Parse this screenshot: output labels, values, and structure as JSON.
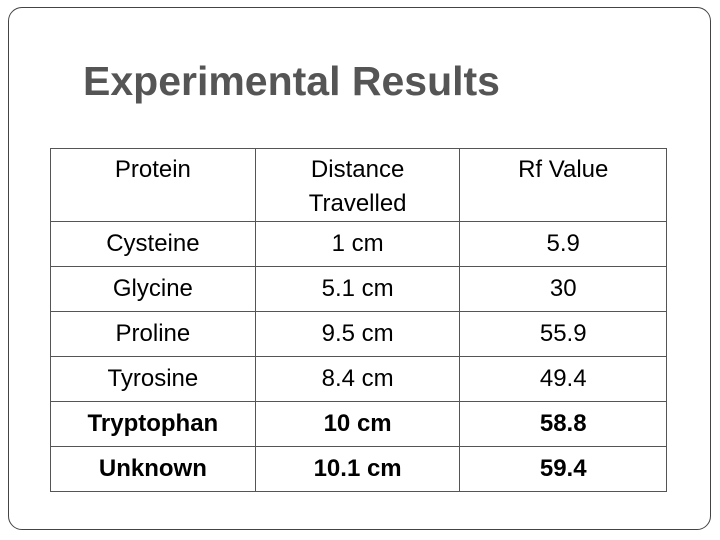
{
  "title": "Experimental Results",
  "table": {
    "header": [
      "Protein",
      "Distance Travelled",
      "Rf Value"
    ],
    "rows": [
      {
        "cells": [
          "Cysteine",
          "1 cm",
          "5.9"
        ],
        "bold": false
      },
      {
        "cells": [
          "Glycine",
          "5.1 cm",
          "30"
        ],
        "bold": false
      },
      {
        "cells": [
          "Proline",
          "9.5 cm",
          "55.9"
        ],
        "bold": false
      },
      {
        "cells": [
          "Tyrosine",
          "8.4 cm",
          "49.4"
        ],
        "bold": false
      },
      {
        "cells": [
          "Tryptophan",
          "10 cm",
          "58.8"
        ],
        "bold": true
      },
      {
        "cells": [
          "Unknown",
          "10.1 cm",
          "59.4"
        ],
        "bold": true
      }
    ]
  }
}
